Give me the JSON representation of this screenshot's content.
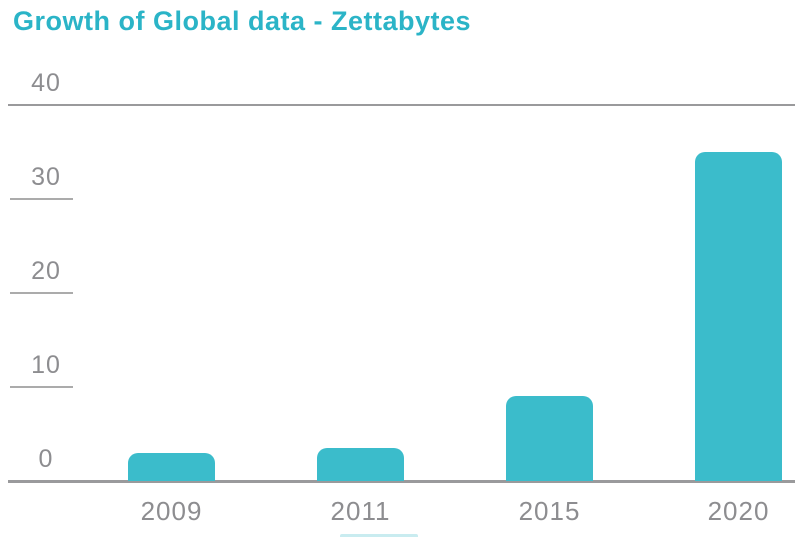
{
  "title": {
    "text": "Growth of Global data - Zettabytes",
    "color": "#2bb4c7"
  },
  "chart_data": {
    "type": "bar",
    "title": "Growth of Global data - Zettabytes",
    "categories": [
      "2009",
      "2011",
      "2015",
      "2020"
    ],
    "values": [
      3,
      3.5,
      9,
      35
    ],
    "xlabel": "",
    "ylabel": "",
    "ylim": [
      0,
      40
    ],
    "yticks": [
      0,
      10,
      20,
      30,
      40
    ],
    "full_width_gridline_ticks": [
      0,
      40
    ],
    "short_tick_marks": [
      10,
      20,
      30
    ],
    "legend": "none",
    "bar_color": "#3bbccb",
    "axis_text_color": "#8d8d90",
    "gridline_color": "#9a9a9c",
    "short_tick_color": "#ababab",
    "bottom_artifact_color": "#c9ecf0"
  }
}
